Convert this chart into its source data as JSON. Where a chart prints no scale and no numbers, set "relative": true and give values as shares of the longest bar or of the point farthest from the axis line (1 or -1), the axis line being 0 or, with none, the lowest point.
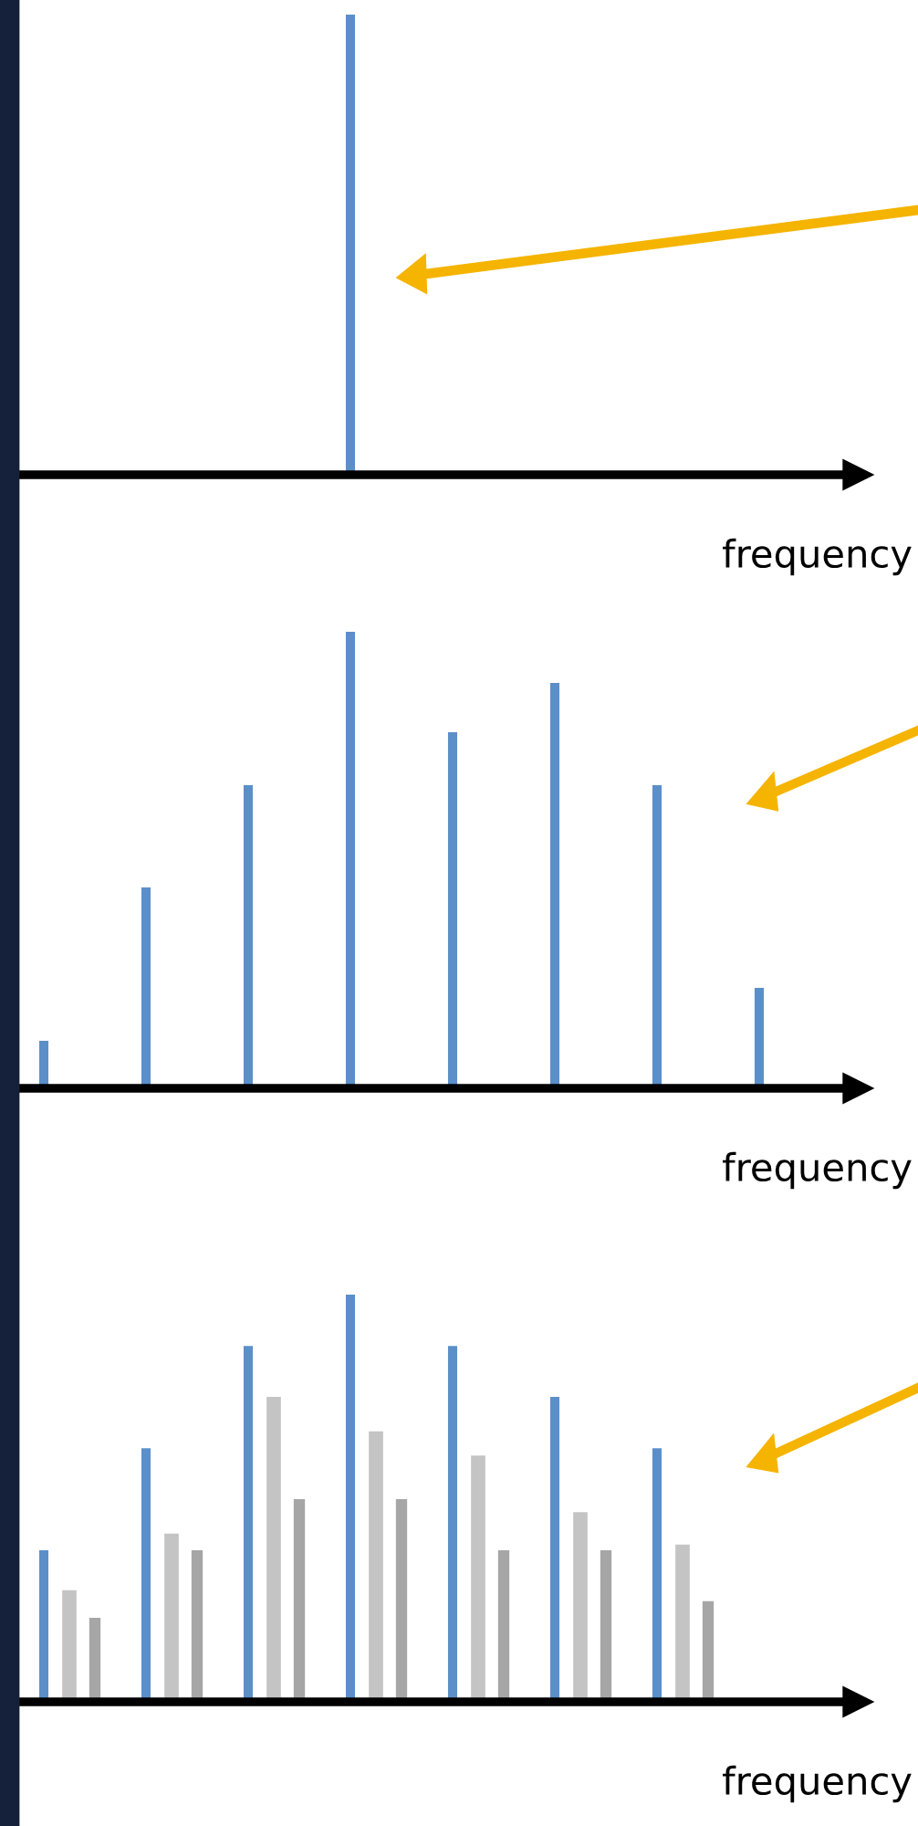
{
  "chart_data": [
    {
      "type": "bar",
      "relative": true,
      "xlabel": "frequency",
      "categories": [
        null,
        null,
        null,
        null,
        null,
        null,
        null,
        null
      ],
      "series": [
        {
          "color": "#5b8fc9",
          "values": [
            null,
            null,
            null,
            1,
            null,
            null,
            null,
            null
          ]
        }
      ]
    },
    {
      "type": "bar",
      "relative": true,
      "xlabel": "frequency",
      "categories": [
        null,
        null,
        null,
        null,
        null,
        null,
        null,
        null
      ],
      "series": [
        {
          "color": "#5b8fc9",
          "values": [
            0.104,
            0.44,
            0.664,
            1,
            0.78,
            0.888,
            0.664,
            0.22
          ]
        }
      ]
    },
    {
      "type": "bar",
      "relative": true,
      "xlabel": "frequency",
      "categories": [
        null,
        null,
        null,
        null,
        null,
        null,
        null,
        null
      ],
      "series": [
        {
          "color": "#5b8fc9",
          "values": [
            0.372,
            0.623,
            0.874,
            1,
            0.874,
            0.749,
            0.623,
            null
          ]
        },
        {
          "color": "#c4c4c4",
          "values": [
            0.274,
            0.413,
            0.749,
            0.664,
            0.605,
            0.466,
            0.386,
            null
          ]
        },
        {
          "color": "#a6a6a6",
          "values": [
            0.206,
            0.372,
            0.498,
            0.498,
            0.372,
            0.372,
            0.247,
            null
          ]
        }
      ]
    }
  ]
}
